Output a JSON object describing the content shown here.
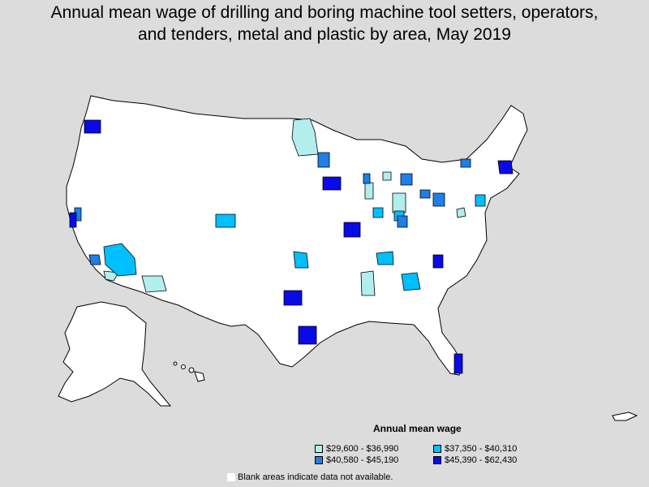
{
  "title_line1": "Annual mean wage of drilling and boring machine tool setters, operators,",
  "title_line2": "and tenders, metal and plastic by area, May 2019",
  "legend": {
    "title": "Annual mean wage",
    "items": [
      {
        "label": "$29,600 - $36,990",
        "color": "#b2eeee"
      },
      {
        "label": "$37,350 - $40,310",
        "color": "#00bfff"
      },
      {
        "label": "$40,580 - $45,190",
        "color": "#1e7fe6"
      },
      {
        "label": "$45,390 - $62,430",
        "color": "#0a0ae6"
      }
    ]
  },
  "note": "Blank areas indicate data not available.",
  "colors": {
    "background": "#dcdcdc",
    "land": "#ffffff",
    "border": "#000000"
  }
}
